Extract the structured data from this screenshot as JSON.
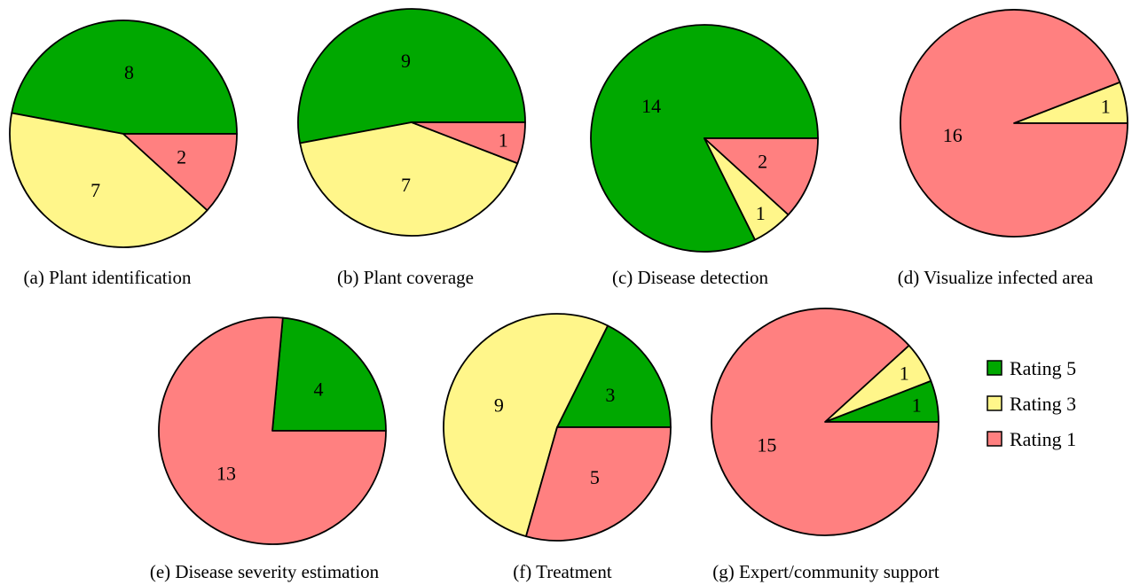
{
  "colors": {
    "rating5": "#00a800",
    "rating3": "#fff68a",
    "rating1": "#ff8080",
    "stroke": "#000000"
  },
  "legend": [
    {
      "label": "Rating 5",
      "key": "rating5"
    },
    {
      "label": "Rating 3",
      "key": "rating3"
    },
    {
      "label": "Rating 1",
      "key": "rating1"
    }
  ],
  "chart_data": [
    {
      "type": "pie",
      "caption": "(a) Plant identification",
      "slices": [
        {
          "category": "Rating 5",
          "value": 8
        },
        {
          "category": "Rating 3",
          "value": 7
        },
        {
          "category": "Rating 1",
          "value": 2
        }
      ]
    },
    {
      "type": "pie",
      "caption": "(b) Plant coverage",
      "slices": [
        {
          "category": "Rating 5",
          "value": 9
        },
        {
          "category": "Rating 3",
          "value": 7
        },
        {
          "category": "Rating 1",
          "value": 1
        }
      ]
    },
    {
      "type": "pie",
      "caption": "(c) Disease detection",
      "slices": [
        {
          "category": "Rating 5",
          "value": 14
        },
        {
          "category": "Rating 3",
          "value": 1
        },
        {
          "category": "Rating 1",
          "value": 2
        }
      ]
    },
    {
      "type": "pie",
      "caption": "(d) Visualize infected area",
      "slices": [
        {
          "category": "Rating 5",
          "value": 0
        },
        {
          "category": "Rating 3",
          "value": 1
        },
        {
          "category": "Rating 1",
          "value": 16
        }
      ]
    },
    {
      "type": "pie",
      "caption": "(e) Disease severity estimation",
      "slices": [
        {
          "category": "Rating 5",
          "value": 4
        },
        {
          "category": "Rating 3",
          "value": 0
        },
        {
          "category": "Rating 1",
          "value": 13
        }
      ]
    },
    {
      "type": "pie",
      "caption": "(f) Treatment",
      "slices": [
        {
          "category": "Rating 5",
          "value": 3
        },
        {
          "category": "Rating 3",
          "value": 9
        },
        {
          "category": "Rating 1",
          "value": 5
        }
      ]
    },
    {
      "type": "pie",
      "caption": "(g) Expert/community support",
      "slices": [
        {
          "category": "Rating 5",
          "value": 1
        },
        {
          "category": "Rating 3",
          "value": 1
        },
        {
          "category": "Rating 1",
          "value": 15
        }
      ]
    }
  ]
}
